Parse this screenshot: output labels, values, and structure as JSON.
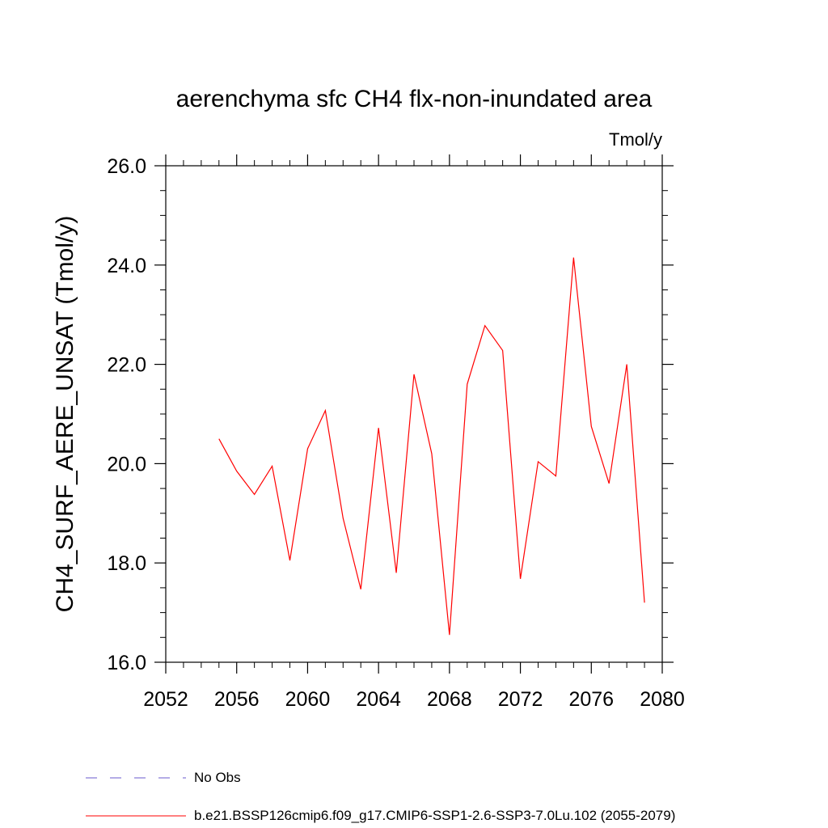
{
  "chart_data": {
    "type": "line",
    "title": "aerenchyma sfc CH4 flx-non-inundated area",
    "units_label": "Tmol/y",
    "xlabel": "",
    "ylabel": "CH4_SURF_AERE_UNSAT  (Tmol/y)",
    "xlim": [
      2052,
      2080
    ],
    "ylim": [
      16.0,
      26.0
    ],
    "x_ticks": [
      2052,
      2056,
      2060,
      2064,
      2068,
      2072,
      2076,
      2080
    ],
    "y_ticks": [
      16.0,
      18.0,
      20.0,
      22.0,
      24.0,
      26.0
    ],
    "x_tick_labels": [
      "2052",
      "2056",
      "2060",
      "2064",
      "2068",
      "2072",
      "2076",
      "2080"
    ],
    "y_tick_labels": [
      "16.0",
      "18.0",
      "20.0",
      "22.0",
      "24.0",
      "26.0"
    ],
    "grid": false,
    "legend_position": "bottom",
    "series": [
      {
        "name": "No Obs",
        "style": "dashed",
        "color": "#6a5acd",
        "x": [],
        "y": []
      },
      {
        "name": "b.e21.BSSP126cmip6.f09_g17.CMIP6-SSP1-2.6-SSP3-7.0Lu.102 (2055-2079)",
        "style": "solid",
        "color": "#ff0000",
        "x": [
          2055,
          2056,
          2057,
          2058,
          2059,
          2060,
          2061,
          2062,
          2063,
          2064,
          2065,
          2066,
          2067,
          2068,
          2069,
          2070,
          2071,
          2072,
          2073,
          2074,
          2075,
          2076,
          2077,
          2078,
          2079
        ],
        "y": [
          20.5,
          19.85,
          19.38,
          19.95,
          18.05,
          20.3,
          21.07,
          18.9,
          17.47,
          20.72,
          17.8,
          21.8,
          20.2,
          16.55,
          21.6,
          22.78,
          22.28,
          17.68,
          20.04,
          19.75,
          24.15,
          20.75,
          19.6,
          22.0,
          17.2
        ]
      }
    ]
  }
}
